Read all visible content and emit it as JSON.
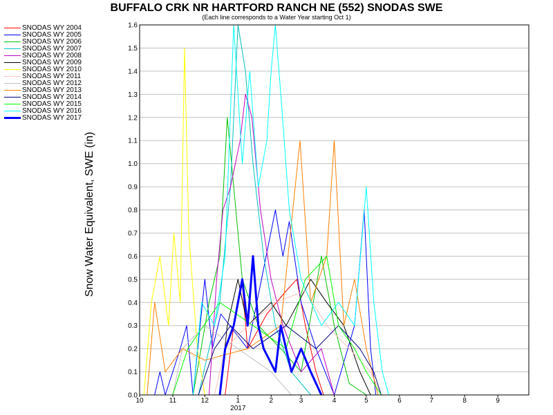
{
  "chart_data": {
    "type": "line",
    "title": "BUFFALO CRK NR HARTFORD RANCH NE (552) SNODAS SWE",
    "subtitle": "(Each line corresponds to a Water Year starting Oct 1)",
    "ylabel": "Snow Water Equivalent, SWE (in)",
    "xlabel": "",
    "ylim": [
      0,
      1.6
    ],
    "xlim": [
      "2016-10-01",
      "2017-09-30"
    ],
    "y_ticks": [
      "0.0",
      "0.1",
      "0.2",
      "0.3",
      "0.4",
      "0.5",
      "0.6",
      "0.7",
      "0.8",
      "0.9",
      "1.0",
      "1.1",
      "1.2",
      "1.3",
      "1.4",
      "1.5",
      "1.6"
    ],
    "x_ticks": [
      "10",
      "11",
      "12",
      "1",
      "2",
      "3",
      "4",
      "5",
      "6",
      "7",
      "8",
      "9"
    ],
    "x_year_label": "2017",
    "grid": true,
    "legend_position": "left",
    "series": [
      {
        "name": "SNODAS WY 2004",
        "color": "#ff0000",
        "points": [
          [
            "2016-12-20",
            0
          ],
          [
            "2016-12-28",
            0.3
          ],
          [
            "2017-01-05",
            0.48
          ],
          [
            "2017-01-10",
            0.2
          ],
          [
            "2017-01-28",
            0.35
          ],
          [
            "2017-02-15",
            0.45
          ],
          [
            "2017-02-25",
            0.5
          ],
          [
            "2017-03-05",
            0.3
          ],
          [
            "2017-03-15",
            0.1
          ],
          [
            "2017-03-22",
            0
          ]
        ]
      },
      {
        "name": "SNODAS WY 2005",
        "color": "#0000ff",
        "points": [
          [
            "2016-10-15",
            0
          ],
          [
            "2016-10-20",
            0.1
          ],
          [
            "2016-10-25",
            0
          ],
          [
            "2016-11-08",
            0.2
          ],
          [
            "2016-11-14",
            0.3
          ],
          [
            "2016-11-20",
            0
          ],
          [
            "2016-12-01",
            0.5
          ],
          [
            "2016-12-08",
            0.2
          ],
          [
            "2016-12-16",
            0.35
          ],
          [
            "2017-01-10",
            0.2
          ],
          [
            "2017-02-05",
            0.8
          ],
          [
            "2017-02-12",
            0.6
          ],
          [
            "2017-02-18",
            0.75
          ],
          [
            "2017-03-01",
            0.4
          ],
          [
            "2017-03-15",
            0.2
          ],
          [
            "2017-04-01",
            0
          ],
          [
            "2017-04-20",
            0.3
          ],
          [
            "2017-04-29",
            0.8
          ],
          [
            "2017-05-05",
            0.2
          ],
          [
            "2017-05-10",
            0
          ]
        ]
      },
      {
        "name": "SNODAS WY 2006",
        "color": "#00c000",
        "points": [
          [
            "2016-11-20",
            0
          ],
          [
            "2016-12-05",
            0.4
          ],
          [
            "2016-12-15",
            0.6
          ],
          [
            "2016-12-22",
            1.2
          ],
          [
            "2016-12-28",
            0.9
          ],
          [
            "2017-01-05",
            0.5
          ],
          [
            "2017-01-20",
            0.3
          ],
          [
            "2017-02-10",
            0.2
          ],
          [
            "2017-03-01",
            0.1
          ],
          [
            "2017-03-20",
            0.6
          ],
          [
            "2017-04-01",
            0.3
          ],
          [
            "2017-04-15",
            0.05
          ],
          [
            "2017-05-01",
            0
          ]
        ]
      },
      {
        "name": "SNODAS WY 2007",
        "color": "#00c0c0",
        "points": [
          [
            "2016-11-25",
            0
          ],
          [
            "2016-12-05",
            0.2
          ],
          [
            "2016-12-15",
            0.4
          ],
          [
            "2016-12-25",
            0.9
          ],
          [
            "2017-01-01",
            1.6
          ],
          [
            "2017-01-08",
            1.4
          ],
          [
            "2017-01-15",
            1.0
          ],
          [
            "2017-01-25",
            0.6
          ],
          [
            "2017-02-05",
            0.3
          ],
          [
            "2017-02-20",
            0.1
          ],
          [
            "2017-03-10",
            0
          ]
        ]
      },
      {
        "name": "SNODAS WY 2008",
        "color": "#c000c0",
        "points": [
          [
            "2016-12-05",
            0
          ],
          [
            "2016-12-12",
            0.5
          ],
          [
            "2016-12-18",
            0.8
          ],
          [
            "2016-12-25",
            0.9
          ],
          [
            "2017-01-03",
            1.1
          ],
          [
            "2017-01-08",
            1.3
          ],
          [
            "2017-01-14",
            1.2
          ],
          [
            "2017-01-22",
            0.8
          ],
          [
            "2017-02-01",
            0.5
          ],
          [
            "2017-02-12",
            0.3
          ],
          [
            "2017-03-01",
            0.1
          ],
          [
            "2017-03-20",
            0.2
          ],
          [
            "2017-04-01",
            0
          ]
        ]
      },
      {
        "name": "SNODAS WY 2009",
        "color": "#000000",
        "points": [
          [
            "2016-12-15",
            0
          ],
          [
            "2016-12-22",
            0.3
          ],
          [
            "2017-01-01",
            0.5
          ],
          [
            "2017-01-10",
            0.3
          ],
          [
            "2017-02-01",
            0.4
          ],
          [
            "2017-02-15",
            0.3
          ],
          [
            "2017-03-10",
            0.5
          ],
          [
            "2017-03-25",
            0.4
          ],
          [
            "2017-04-10",
            0.3
          ],
          [
            "2017-04-25",
            0.1
          ],
          [
            "2017-05-05",
            0
          ]
        ]
      },
      {
        "name": "SNODAS WY 2010",
        "color": "#ffff00",
        "points": [
          [
            "2016-10-05",
            0
          ],
          [
            "2016-10-12",
            0.4
          ],
          [
            "2016-10-20",
            0.6
          ],
          [
            "2016-10-28",
            0.3
          ],
          [
            "2016-11-02",
            0.7
          ],
          [
            "2016-11-08",
            0.4
          ],
          [
            "2016-11-12",
            1.5
          ],
          [
            "2016-11-16",
            0.7
          ],
          [
            "2016-11-24",
            0.2
          ],
          [
            "2016-12-01",
            0
          ]
        ]
      },
      {
        "name": "SNODAS WY 2011",
        "color": "#ffc0c0",
        "points": [
          [
            "2016-12-10",
            0
          ],
          [
            "2016-12-20",
            0.2
          ],
          [
            "2017-01-10",
            0.3
          ],
          [
            "2017-02-05",
            0.4
          ],
          [
            "2017-03-05",
            0.45
          ],
          [
            "2017-03-25",
            0.3
          ],
          [
            "2017-04-15",
            0.2
          ],
          [
            "2017-05-05",
            0.1
          ],
          [
            "2017-05-15",
            0
          ]
        ]
      },
      {
        "name": "SNODAS WY 2012",
        "color": "#c0c0c0",
        "points": [
          [
            "2016-11-01",
            0
          ],
          [
            "2016-11-10",
            0.2
          ],
          [
            "2016-12-01",
            0.3
          ],
          [
            "2017-01-01",
            0.2
          ],
          [
            "2017-02-01",
            0.1
          ],
          [
            "2017-02-20",
            0
          ]
        ]
      },
      {
        "name": "SNODAS WY 2013",
        "color": "#ff8000",
        "points": [
          [
            "2016-10-08",
            0
          ],
          [
            "2016-10-15",
            0.4
          ],
          [
            "2016-10-25",
            0.1
          ],
          [
            "2016-11-10",
            0.2
          ],
          [
            "2016-12-01",
            0.15
          ],
          [
            "2017-01-10",
            0.2
          ],
          [
            "2017-02-10",
            0.3
          ],
          [
            "2017-02-28",
            1.1
          ],
          [
            "2017-03-10",
            0.4
          ],
          [
            "2017-03-25",
            0.6
          ],
          [
            "2017-04-01",
            1.1
          ],
          [
            "2017-04-10",
            0.3
          ],
          [
            "2017-04-20",
            0.5
          ],
          [
            "2017-05-01",
            0.2
          ],
          [
            "2017-05-12",
            0
          ]
        ]
      },
      {
        "name": "SNODAS WY 2014",
        "color": "#000080",
        "points": [
          [
            "2016-11-25",
            0
          ],
          [
            "2016-12-10",
            0.2
          ],
          [
            "2016-12-25",
            0.3
          ],
          [
            "2017-01-15",
            0.2
          ],
          [
            "2017-02-15",
            0.3
          ],
          [
            "2017-03-15",
            0.2
          ],
          [
            "2017-04-05",
            0.3
          ],
          [
            "2017-04-25",
            0.2
          ],
          [
            "2017-05-08",
            0.1
          ],
          [
            "2017-05-15",
            0
          ]
        ]
      },
      {
        "name": "SNODAS WY 2015",
        "color": "#00ff00",
        "points": [
          [
            "2016-11-01",
            0
          ],
          [
            "2016-11-15",
            0.2
          ],
          [
            "2016-12-15",
            0.4
          ],
          [
            "2017-01-15",
            0.3
          ],
          [
            "2017-02-15",
            0.2
          ],
          [
            "2017-03-05",
            0.5
          ],
          [
            "2017-03-25",
            0.6
          ],
          [
            "2017-04-05",
            0.3
          ],
          [
            "2017-04-20",
            0.2
          ],
          [
            "2017-05-01",
            0.1
          ],
          [
            "2017-05-15",
            0
          ]
        ]
      },
      {
        "name": "SNODAS WY 2016",
        "color": "#00ffff",
        "points": [
          [
            "2016-11-20",
            0
          ],
          [
            "2016-11-28",
            0.4
          ],
          [
            "2016-12-10",
            0.3
          ],
          [
            "2016-12-20",
            0.6
          ],
          [
            "2016-12-28",
            1.6
          ],
          [
            "2017-01-05",
            1.0
          ],
          [
            "2017-01-12",
            1.4
          ],
          [
            "2017-01-20",
            0.9
          ],
          [
            "2017-01-28",
            1.1
          ],
          [
            "2017-02-01",
            1.4
          ],
          [
            "2017-02-05",
            1.6
          ],
          [
            "2017-02-10",
            1.3
          ],
          [
            "2017-02-18",
            0.8
          ],
          [
            "2017-03-01",
            0.5
          ],
          [
            "2017-03-20",
            0.3
          ],
          [
            "2017-04-05",
            0.4
          ],
          [
            "2017-04-20",
            0.3
          ],
          [
            "2017-05-01",
            0.9
          ],
          [
            "2017-05-08",
            0.4
          ],
          [
            "2017-05-16",
            0.1
          ],
          [
            "2017-05-22",
            0
          ]
        ]
      },
      {
        "name": "SNODAS WY 2017",
        "color": "#0000ff",
        "bold": true,
        "points": [
          [
            "2016-12-15",
            0
          ],
          [
            "2016-12-20",
            0.2
          ],
          [
            "2016-12-28",
            0.3
          ],
          [
            "2017-01-05",
            0.5
          ],
          [
            "2017-01-10",
            0.3
          ],
          [
            "2017-01-15",
            0.6
          ],
          [
            "2017-01-20",
            0.3
          ],
          [
            "2017-01-25",
            0.2
          ],
          [
            "2017-02-05",
            0.1
          ],
          [
            "2017-02-10",
            0.3
          ],
          [
            "2017-02-20",
            0.1
          ],
          [
            "2017-03-01",
            0.2
          ],
          [
            "2017-03-10",
            0.1
          ],
          [
            "2017-03-20",
            0
          ]
        ]
      }
    ]
  }
}
